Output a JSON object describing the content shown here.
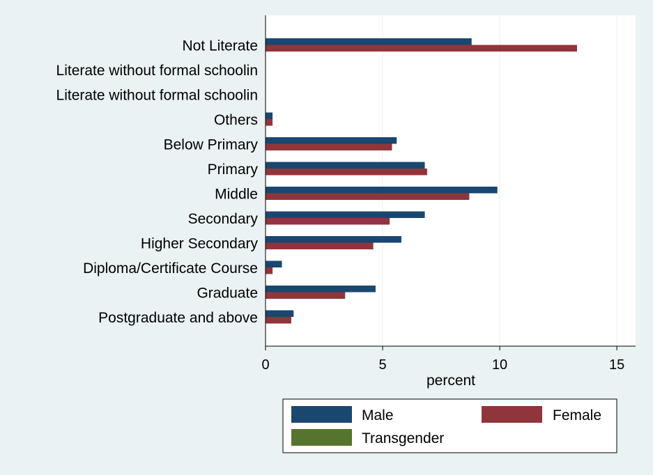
{
  "chart_data": {
    "type": "bar",
    "orientation": "horizontal",
    "categories": [
      "Not Literate",
      "Literate without formal schoolin",
      "Literate without formal schoolin",
      "Others",
      "Below Primary",
      "Primary",
      "Middle",
      "Secondary",
      "Higher Secondary",
      "Diploma/Certificate Course",
      "Graduate",
      "Postgraduate and above"
    ],
    "series": [
      {
        "name": "Male",
        "color": "#1a476f",
        "values": [
          8.8,
          0,
          0,
          0.3,
          5.6,
          6.8,
          9.9,
          6.8,
          5.8,
          0.7,
          4.7,
          1.2
        ]
      },
      {
        "name": "Female",
        "color": "#90353b",
        "values": [
          13.3,
          0,
          0,
          0.3,
          5.4,
          6.9,
          8.7,
          5.3,
          4.6,
          0.3,
          3.4,
          1.1
        ]
      },
      {
        "name": "Transgender",
        "color": "#55752f",
        "values": [
          0,
          0,
          0,
          0,
          0,
          0,
          0,
          0,
          0,
          0,
          0,
          0
        ]
      }
    ],
    "xlabel": "percent",
    "xlim": [
      0,
      15.8
    ],
    "xticks": [
      0,
      5,
      10,
      15
    ],
    "grid": true,
    "legend": {
      "position": "bottom",
      "columns": 2
    },
    "colors": {
      "background": "#eaf2f3",
      "plot_background": "#ffffff",
      "grid": "#eaf2f3"
    }
  }
}
